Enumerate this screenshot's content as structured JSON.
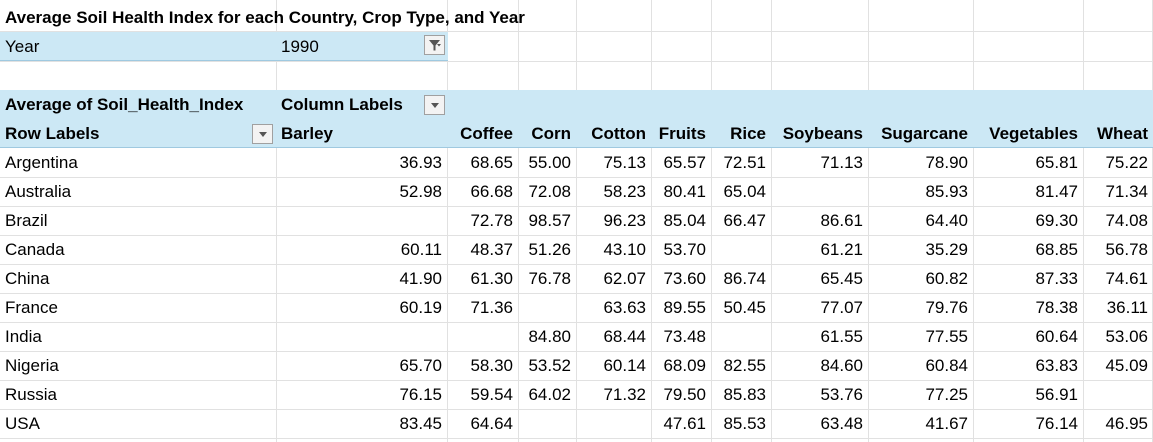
{
  "title": "Average Soil Health Index for each Country, Crop Type, and Year",
  "filter": {
    "label": "Year",
    "value": "1990"
  },
  "pivot": {
    "value_field": "Average of Soil_Health_Index",
    "column_labels": "Column Labels",
    "row_labels": "Row Labels",
    "columns": [
      "Barley",
      "Coffee",
      "Corn",
      "Cotton",
      "Fruits",
      "Rice",
      "Soybeans",
      "Sugarcane",
      "Vegetables",
      "Wheat"
    ],
    "rows": [
      {
        "label": "Argentina",
        "values": [
          "36.93",
          "68.65",
          "55.00",
          "75.13",
          "65.57",
          "72.51",
          "71.13",
          "78.90",
          "65.81",
          "75.22"
        ]
      },
      {
        "label": "Australia",
        "values": [
          "52.98",
          "66.68",
          "72.08",
          "58.23",
          "80.41",
          "65.04",
          "",
          "85.93",
          "81.47",
          "71.34"
        ]
      },
      {
        "label": "Brazil",
        "values": [
          "",
          "72.78",
          "98.57",
          "96.23",
          "85.04",
          "66.47",
          "86.61",
          "64.40",
          "69.30",
          "74.08"
        ]
      },
      {
        "label": "Canada",
        "values": [
          "60.11",
          "48.37",
          "51.26",
          "43.10",
          "53.70",
          "",
          "61.21",
          "35.29",
          "68.85",
          "56.78"
        ]
      },
      {
        "label": "China",
        "values": [
          "41.90",
          "61.30",
          "76.78",
          "62.07",
          "73.60",
          "86.74",
          "65.45",
          "60.82",
          "87.33",
          "74.61"
        ]
      },
      {
        "label": "France",
        "values": [
          "60.19",
          "71.36",
          "",
          "63.63",
          "89.55",
          "50.45",
          "77.07",
          "79.76",
          "78.38",
          "36.11"
        ]
      },
      {
        "label": "India",
        "values": [
          "",
          "",
          "84.80",
          "68.44",
          "73.48",
          "",
          "61.55",
          "77.55",
          "60.64",
          "53.06"
        ]
      },
      {
        "label": "Nigeria",
        "values": [
          "65.70",
          "58.30",
          "53.52",
          "60.14",
          "68.09",
          "82.55",
          "84.60",
          "60.84",
          "63.83",
          "45.09"
        ]
      },
      {
        "label": "Russia",
        "values": [
          "76.15",
          "59.54",
          "64.02",
          "71.32",
          "79.50",
          "85.83",
          "53.76",
          "77.25",
          "56.91",
          ""
        ]
      },
      {
        "label": "USA",
        "values": [
          "83.45",
          "64.64",
          "",
          "",
          "47.61",
          "85.53",
          "63.48",
          "41.67",
          "76.14",
          "46.95"
        ]
      }
    ]
  },
  "icons": {
    "filter_applied": "filter-icon",
    "dropdown": "chevron-down-icon"
  },
  "colors": {
    "header_fill": "#cce8f5",
    "header_border": "#9fc9e0",
    "gridline": "#e1e1e1"
  }
}
